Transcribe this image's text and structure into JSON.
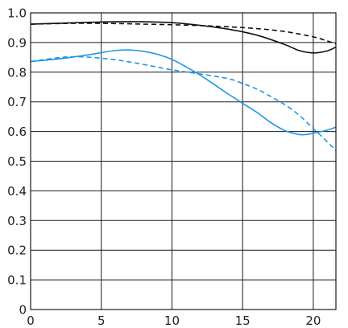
{
  "chart_data": {
    "type": "line",
    "title": "",
    "xlabel": "",
    "ylabel": "",
    "xlim": [
      0,
      21.6
    ],
    "ylim": [
      0,
      1.0
    ],
    "xticks": [
      0,
      5,
      10,
      15,
      20
    ],
    "xtick_labels": [
      "0",
      "5",
      "10",
      "15",
      "20"
    ],
    "yticks": [
      0,
      0.1,
      0.2,
      0.3,
      0.4,
      0.5,
      0.6,
      0.7,
      0.8,
      0.9,
      1.0
    ],
    "ytick_labels": [
      "0",
      "0.1",
      "0.2",
      "0.3",
      "0.4",
      "0.5",
      "0.6",
      "0.7",
      "0.8",
      "0.9",
      "1.0"
    ],
    "grid": true,
    "series": [
      {
        "color": "#111111",
        "style": "solid",
        "x": [
          0,
          2,
          4,
          6,
          8,
          10,
          12,
          14,
          16,
          18,
          19,
          20,
          21,
          21.6
        ],
        "y": [
          0.962,
          0.965,
          0.968,
          0.97,
          0.97,
          0.967,
          0.958,
          0.945,
          0.925,
          0.893,
          0.873,
          0.865,
          0.872,
          0.885
        ]
      },
      {
        "color": "#111111",
        "style": "dashed",
        "x": [
          0,
          2,
          4,
          6,
          8,
          10,
          12,
          14,
          16,
          18,
          20,
          21,
          21.6
        ],
        "y": [
          0.962,
          0.964,
          0.965,
          0.964,
          0.962,
          0.96,
          0.957,
          0.953,
          0.947,
          0.937,
          0.919,
          0.905,
          0.895
        ]
      },
      {
        "color": "#1e96e6",
        "style": "solid",
        "x": [
          0,
          2,
          4,
          5,
          6,
          7,
          8,
          9,
          10,
          11,
          12,
          13,
          14,
          15,
          16,
          17,
          18,
          19,
          19.5,
          20,
          21,
          21.6
        ],
        "y": [
          0.836,
          0.845,
          0.858,
          0.866,
          0.873,
          0.875,
          0.87,
          0.86,
          0.843,
          0.818,
          0.79,
          0.758,
          0.726,
          0.695,
          0.665,
          0.63,
          0.603,
          0.59,
          0.59,
          0.594,
          0.605,
          0.615
        ]
      },
      {
        "color": "#1e96e6",
        "style": "dashed",
        "x": [
          0,
          2,
          3,
          4,
          6,
          8,
          10,
          12,
          14,
          15,
          16,
          17,
          18,
          19,
          20,
          21,
          21.6
        ],
        "y": [
          0.836,
          0.849,
          0.852,
          0.851,
          0.842,
          0.826,
          0.808,
          0.794,
          0.778,
          0.762,
          0.743,
          0.718,
          0.69,
          0.655,
          0.61,
          0.565,
          0.535
        ]
      }
    ]
  }
}
